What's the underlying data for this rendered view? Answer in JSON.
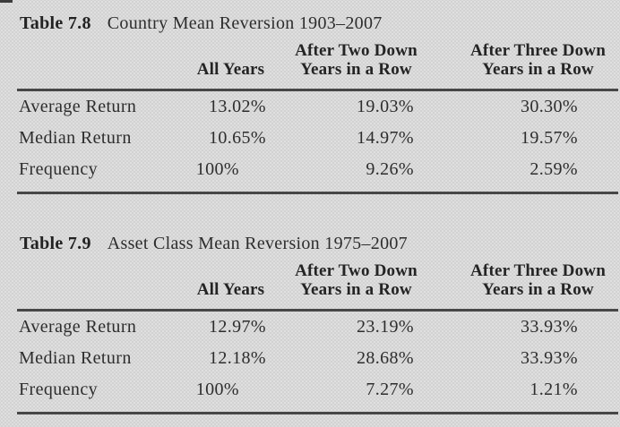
{
  "page": {
    "background_color": "#d2d2d2",
    "text_color": "#2d2d2d",
    "rule_color": "#474747"
  },
  "tables": [
    {
      "label": "Table 7.8",
      "title": "Country Mean Reversion 1903–2007",
      "columns": {
        "all_years": "All Years",
        "two_down_line1": "After Two Down",
        "two_down_line2": "Years in a Row",
        "three_down_line1": "After Three Down",
        "three_down_line2": "Years in a Row"
      },
      "rows": [
        {
          "label": "Average Return",
          "all_years": "13.02%",
          "after_two_down": "19.03%",
          "after_three_down": "30.30%"
        },
        {
          "label": "Median Return",
          "all_years": "10.65%",
          "after_two_down": "14.97%",
          "after_three_down": "19.57%"
        },
        {
          "label": "Frequency",
          "all_years": "100%",
          "after_two_down": "9.26%",
          "after_three_down": "2.59%"
        }
      ]
    },
    {
      "label": "Table 7.9",
      "title": "Asset Class Mean Reversion 1975–2007",
      "columns": {
        "all_years": "All Years",
        "two_down_line1": "After Two Down",
        "two_down_line2": "Years in a Row",
        "three_down_line1": "After Three Down",
        "three_down_line2": "Years in a Row"
      },
      "rows": [
        {
          "label": "Average Return",
          "all_years": "12.97%",
          "after_two_down": "23.19%",
          "after_three_down": "33.93%"
        },
        {
          "label": "Median Return",
          "all_years": "12.18%",
          "after_two_down": "28.68%",
          "after_three_down": "33.93%"
        },
        {
          "label": "Frequency",
          "all_years": "100%",
          "after_two_down": "7.27%",
          "after_three_down": "1.21%"
        }
      ]
    }
  ]
}
